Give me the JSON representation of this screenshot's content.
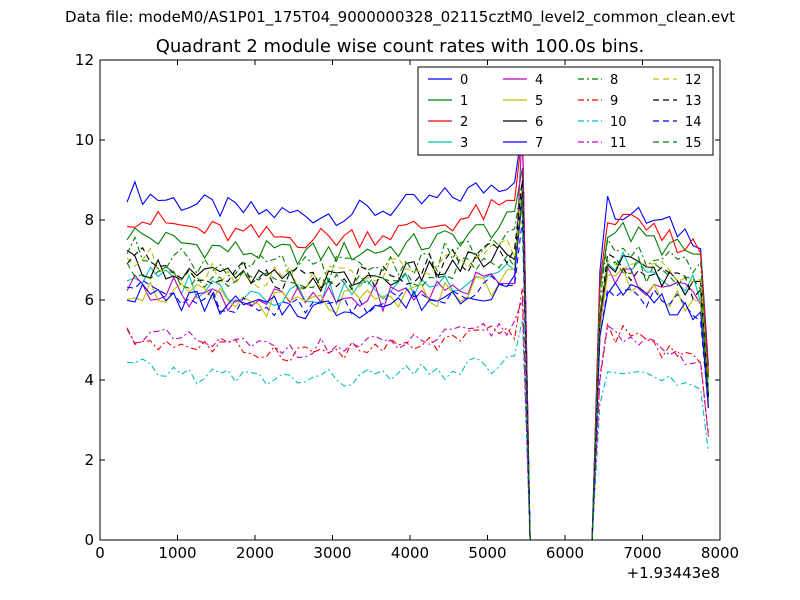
{
  "figure": {
    "suptitle": "Data file: modeM0/AS1P01_175T04_9000000328_02115cztM0_level2_common_clean.evt"
  },
  "chart_data": {
    "type": "line",
    "title": "Quadrant 2 module wise count rates with 100.0s bins.",
    "xlabel": "",
    "ylabel": "",
    "x_offset_label": "+1.93443e8",
    "xlim": [
      0,
      8000
    ],
    "ylim": [
      0,
      12
    ],
    "xticks": [
      0,
      1000,
      2000,
      3000,
      4000,
      5000,
      6000,
      7000,
      8000
    ],
    "yticks": [
      0,
      2,
      4,
      6,
      8,
      10,
      12
    ],
    "grid": false,
    "legend_position": "top-right",
    "x_segments": [
      {
        "start": 350,
        "end": 5450,
        "step": 100
      },
      {
        "start": 6450,
        "end": 7850,
        "step": 100
      }
    ],
    "gap_x": [
      5550,
      6350
    ],
    "gap_value": 0,
    "series": [
      {
        "name": "0",
        "color": "#0000ff",
        "dash": "solid",
        "level1": 8.3,
        "level2": 7.9,
        "spike": 10.3,
        "amp": 0.3
      },
      {
        "name": "1",
        "color": "#008000",
        "dash": "solid",
        "level1": 7.3,
        "level2": 7.4,
        "spike": 9.3,
        "amp": 0.3
      },
      {
        "name": "2",
        "color": "#ff0000",
        "dash": "solid",
        "level1": 7.7,
        "level2": 7.6,
        "spike": 10.2,
        "amp": 0.3
      },
      {
        "name": "3",
        "color": "#00bfbf",
        "dash": "solid",
        "level1": 6.3,
        "level2": 6.6,
        "spike": 8.6,
        "amp": 0.35
      },
      {
        "name": "4",
        "color": "#bf00bf",
        "dash": "solid",
        "level1": 6.1,
        "level2": 6.3,
        "spike": 10.3,
        "amp": 0.35
      },
      {
        "name": "5",
        "color": "#bfbf00",
        "dash": "solid",
        "level1": 6.0,
        "level2": 6.2,
        "spike": 8.4,
        "amp": 0.35
      },
      {
        "name": "6",
        "color": "#000000",
        "dash": "solid",
        "level1": 6.6,
        "level2": 6.6,
        "spike": 8.8,
        "amp": 0.3
      },
      {
        "name": "7",
        "color": "#0000ff",
        "dash": "solid",
        "level1": 5.9,
        "level2": 6.0,
        "spike": 8.6,
        "amp": 0.3
      },
      {
        "name": "8",
        "color": "#008000",
        "dash": "dashdot",
        "level1": 6.9,
        "level2": 7.0,
        "spike": 9.0,
        "amp": 0.35
      },
      {
        "name": "9",
        "color": "#ff0000",
        "dash": "dashdot",
        "level1": 4.8,
        "level2": 4.8,
        "spike": 6.3,
        "amp": 0.25
      },
      {
        "name": "10",
        "color": "#00bfbf",
        "dash": "dashdot",
        "level1": 4.1,
        "level2": 4.0,
        "spike": 5.5,
        "amp": 0.25
      },
      {
        "name": "11",
        "color": "#bf00bf",
        "dash": "dashdot",
        "level1": 4.9,
        "level2": 4.7,
        "spike": 6.0,
        "amp": 0.25
      },
      {
        "name": "12",
        "color": "#bfbf00",
        "dash": "dashed",
        "level1": 6.7,
        "level2": 6.8,
        "spike": 8.8,
        "amp": 0.35
      },
      {
        "name": "13",
        "color": "#000000",
        "dash": "dashed",
        "level1": 6.7,
        "level2": 6.5,
        "spike": 9.0,
        "amp": 0.35
      },
      {
        "name": "14",
        "color": "#0000ff",
        "dash": "dashed",
        "level1": 6.0,
        "level2": 6.0,
        "spike": 8.0,
        "amp": 0.3
      },
      {
        "name": "15",
        "color": "#008000",
        "dash": "dashed",
        "level1": 6.5,
        "level2": 6.6,
        "spike": 8.5,
        "amp": 0.3
      }
    ]
  }
}
